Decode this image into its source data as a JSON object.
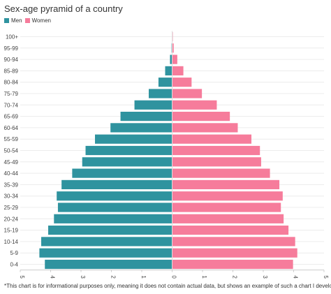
{
  "title": "Sex-age pyramid of a country",
  "footnote": "*This chart is for informational purposes only, meaning it does not contain actual data, but shows an example of such a chart I developed.",
  "chart_data": {
    "type": "bar",
    "orientation": "horizontal",
    "layout": "population-pyramid",
    "categories": [
      "100+",
      "95-99",
      "90-94",
      "85-89",
      "80-84",
      "75-79",
      "70-74",
      "65-69",
      "60-64",
      "55-59",
      "50-54",
      "45-49",
      "40-44",
      "35-39",
      "30-34",
      "25-29",
      "20-24",
      "15-19",
      "10-14",
      "5-9",
      "0-4"
    ],
    "series": [
      {
        "name": "Men",
        "color": "#2f939f",
        "values": [
          0,
          0.02,
          0.07,
          0.23,
          0.45,
          0.77,
          1.24,
          1.7,
          2.03,
          2.54,
          2.85,
          2.96,
          3.29,
          3.64,
          3.8,
          3.76,
          3.89,
          4.08,
          4.31,
          4.37,
          4.19
        ]
      },
      {
        "name": "Women",
        "color": "#f67c9b",
        "values": [
          0.02,
          0.05,
          0.17,
          0.37,
          0.64,
          0.98,
          1.47,
          1.9,
          2.16,
          2.61,
          2.89,
          2.93,
          3.22,
          3.53,
          3.64,
          3.58,
          3.67,
          3.83,
          4.05,
          4.12,
          3.98
        ]
      }
    ],
    "xlim": [
      -5,
      5
    ],
    "xticks": [
      "5",
      "4",
      "3",
      "2",
      "1",
      "0",
      "1",
      "2",
      "3",
      "4",
      "5"
    ],
    "legend_position": "top-left",
    "grid": true
  }
}
